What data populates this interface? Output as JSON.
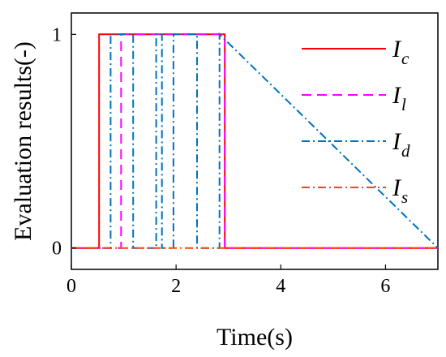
{
  "chart_data": {
    "type": "line",
    "xlabel": "Time(s)",
    "ylabel": "Evaluation results(-)",
    "xlim": [
      0,
      7
    ],
    "ylim": [
      -0.1,
      1.1
    ],
    "xticks": [
      0,
      2,
      4,
      6
    ],
    "yticks": [
      0,
      1
    ],
    "xtick_labels": [
      "0",
      "2",
      "4",
      "6"
    ],
    "ytick_labels": [
      "0",
      "1"
    ],
    "grid": false,
    "legend_position": "top-right",
    "series": [
      {
        "name_main": "I",
        "name_sub": "c",
        "color": "#ff0000",
        "dash": "solid",
        "x": [
          0,
          0.53,
          0.53,
          2.93,
          2.93,
          7
        ],
        "y": [
          0,
          0,
          1,
          1,
          0,
          0
        ]
      },
      {
        "name_main": "I",
        "name_sub": "l",
        "color": "#ff00ff",
        "dash": "dashed",
        "x": [
          0,
          0.95,
          0.95,
          2.93,
          2.93,
          7
        ],
        "y": [
          0,
          0,
          1,
          1,
          0,
          0
        ]
      },
      {
        "name_main": "I",
        "name_sub": "d",
        "color": "#0072bd",
        "dash": "dashdot",
        "x": [
          0,
          0.75,
          0.75,
          1.18,
          1.18,
          1.62,
          1.62,
          1.73,
          1.73,
          1.95,
          1.95,
          2.4,
          2.4,
          2.83,
          2.83,
          7
        ],
        "y": [
          0,
          0,
          1,
          1,
          0,
          0,
          1,
          1,
          0,
          0,
          1,
          1,
          0,
          0,
          1,
          0
        ]
      },
      {
        "name_main": "I",
        "name_sub": "s",
        "color": "#ff4500",
        "dash": "dashdot",
        "x": [
          0,
          7
        ],
        "y": [
          0,
          0
        ]
      }
    ]
  }
}
